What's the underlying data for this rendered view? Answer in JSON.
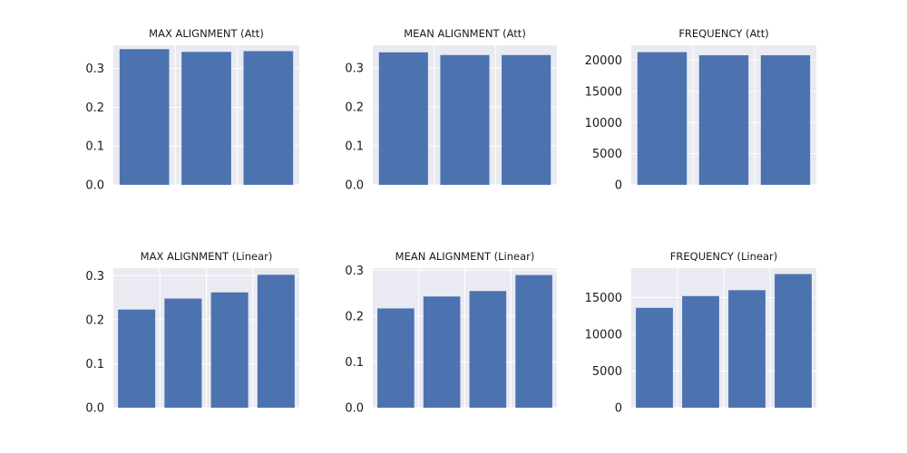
{
  "colors": {
    "bar": "#4c72b0",
    "plot_background": "#eaeaf2",
    "grid": "#ffffff",
    "text": "#1a1a1a"
  },
  "chart_data": [
    {
      "type": "bar",
      "title": "MAX ALIGNMENT (Att)",
      "xlabel": "",
      "ylabel": "",
      "categories": [
        "",
        "",
        ""
      ],
      "values": [
        0.35,
        0.343,
        0.345
      ],
      "ylim": [
        0,
        0.36
      ],
      "yticks": [
        0.0,
        0.1,
        0.2,
        0.3
      ],
      "ytick_labels": [
        "0.0",
        "0.1",
        "0.2",
        "0.3"
      ],
      "grid": true
    },
    {
      "type": "bar",
      "title": "MEAN ALIGNMENT (Att)",
      "xlabel": "",
      "ylabel": "",
      "categories": [
        "",
        "",
        ""
      ],
      "values": [
        0.34,
        0.333,
        0.333
      ],
      "ylim": [
        0,
        0.358
      ],
      "yticks": [
        0.0,
        0.1,
        0.2,
        0.3
      ],
      "ytick_labels": [
        "0.0",
        "0.1",
        "0.2",
        "0.3"
      ],
      "grid": true
    },
    {
      "type": "bar",
      "title": "FREQUENCY (Att)",
      "xlabel": "",
      "ylabel": "",
      "categories": [
        "",
        "",
        ""
      ],
      "values": [
        21300,
        20800,
        20800
      ],
      "ylim": [
        0,
        22400
      ],
      "yticks": [
        0,
        5000,
        10000,
        15000,
        20000
      ],
      "ytick_labels": [
        "0",
        "5000",
        "10000",
        "15000",
        "20000"
      ],
      "grid": true
    },
    {
      "type": "bar",
      "title": "MAX ALIGNMENT (Linear)",
      "xlabel": "",
      "ylabel": "",
      "categories": [
        "",
        "",
        "",
        ""
      ],
      "values": [
        0.223,
        0.248,
        0.262,
        0.302
      ],
      "ylim": [
        0,
        0.317
      ],
      "yticks": [
        0.0,
        0.1,
        0.2,
        0.3
      ],
      "ytick_labels": [
        "0.0",
        "0.1",
        "0.2",
        "0.3"
      ],
      "grid": true
    },
    {
      "type": "bar",
      "title": "MEAN ALIGNMENT (Linear)",
      "xlabel": "",
      "ylabel": "",
      "categories": [
        "",
        "",
        "",
        ""
      ],
      "values": [
        0.217,
        0.243,
        0.255,
        0.29
      ],
      "ylim": [
        0,
        0.305
      ],
      "yticks": [
        0.0,
        0.1,
        0.2,
        0.3
      ],
      "ytick_labels": [
        "0.0",
        "0.1",
        "0.2",
        "0.3"
      ],
      "grid": true
    },
    {
      "type": "bar",
      "title": "FREQUENCY (Linear)",
      "xlabel": "",
      "ylabel": "",
      "categories": [
        "",
        "",
        "",
        ""
      ],
      "values": [
        13600,
        15200,
        16000,
        18200
      ],
      "ylim": [
        0,
        19000
      ],
      "yticks": [
        0,
        5000,
        10000,
        15000
      ],
      "ytick_labels": [
        "0",
        "5000",
        "10000",
        "15000"
      ],
      "grid": true
    }
  ]
}
